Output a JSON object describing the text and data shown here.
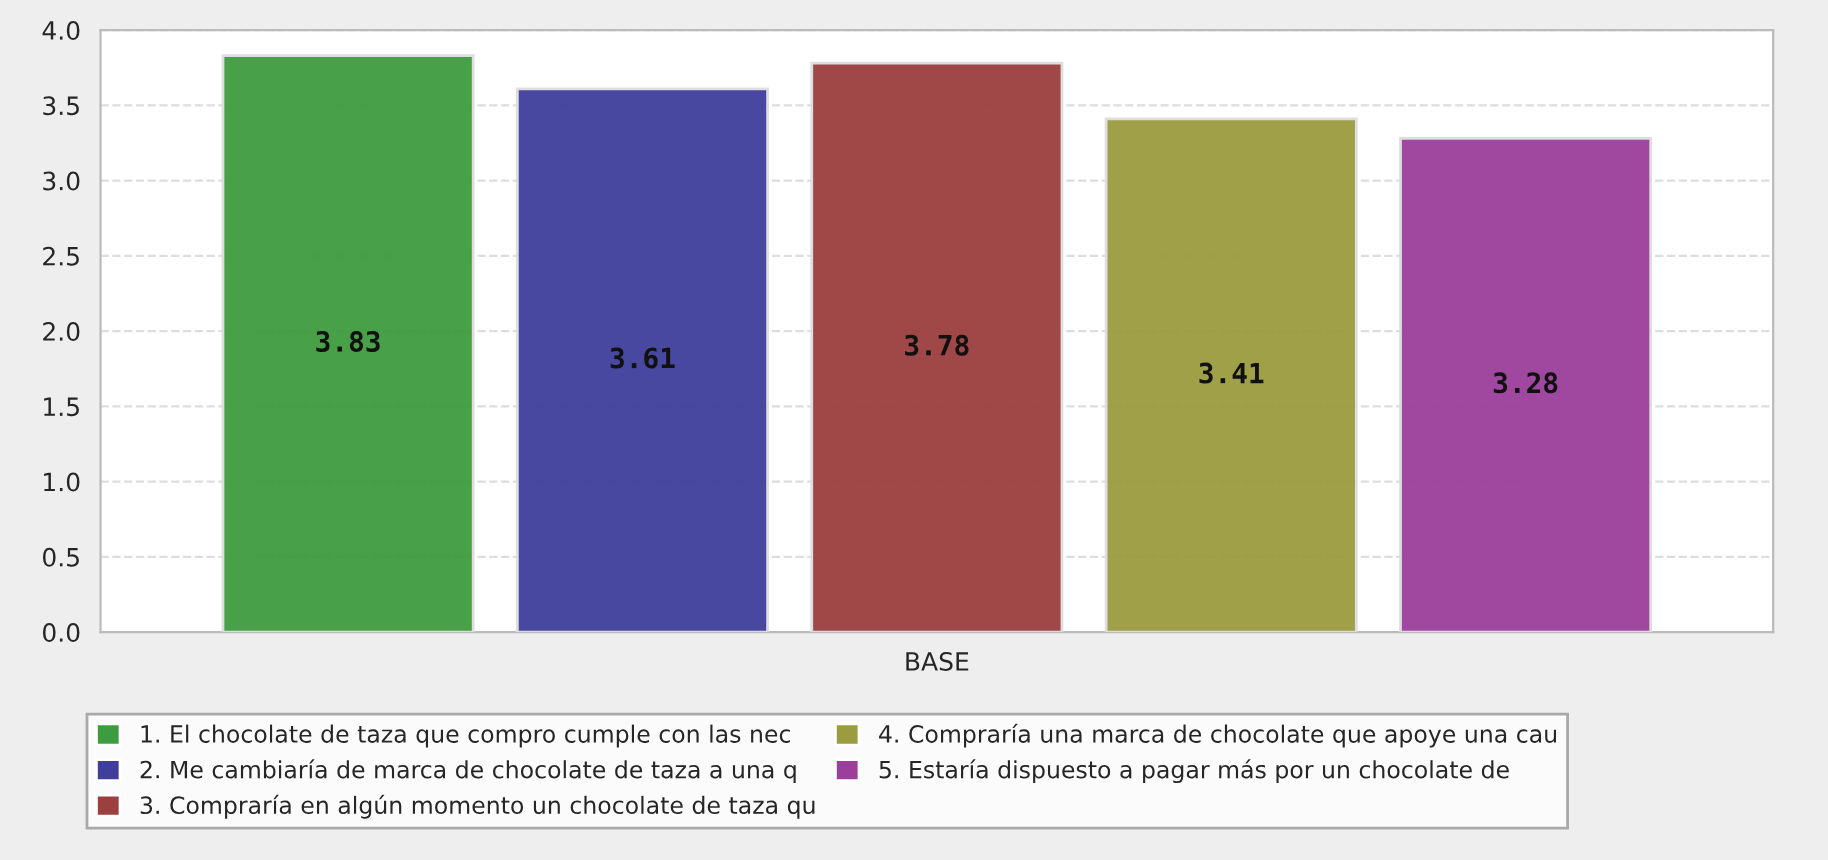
{
  "chart_data": {
    "type": "bar",
    "categories": [
      "BASE"
    ],
    "series": [
      {
        "name": "1. El chocolate de taza que compro cumple con las nec",
        "color": "#3f9b3f",
        "values": [
          3.83
        ]
      },
      {
        "name": "2. Me cambiaría de marca de chocolate de taza a una q",
        "color": "#3f3f9b",
        "values": [
          3.61
        ]
      },
      {
        "name": "3. Compraría en algún momento un chocolate de taza qu",
        "color": "#9b3f3f",
        "values": [
          3.78
        ]
      },
      {
        "name": "4. Compraría una marca de chocolate que apoye una cau",
        "color": "#9b9b3f",
        "values": [
          3.41
        ]
      },
      {
        "name": "5. Estaría dispuesto a pagar más por un chocolate de",
        "color": "#9b3f9b",
        "values": [
          3.28
        ]
      }
    ],
    "ylim": [
      0,
      4.0
    ],
    "yticks": [
      {
        "value": 0,
        "label": "0.0"
      },
      {
        "value": 0.5,
        "label": "0.5"
      },
      {
        "value": 1,
        "label": "1.0"
      },
      {
        "value": 1.5,
        "label": "1.5"
      },
      {
        "value": 2,
        "label": "2.0"
      },
      {
        "value": 2.5,
        "label": "2.5"
      },
      {
        "value": 3,
        "label": "3.0"
      },
      {
        "value": 3.5,
        "label": "3.5"
      },
      {
        "value": 4,
        "label": "4.0"
      }
    ],
    "grid": "y",
    "data_labels": true,
    "legend": "bottom"
  }
}
